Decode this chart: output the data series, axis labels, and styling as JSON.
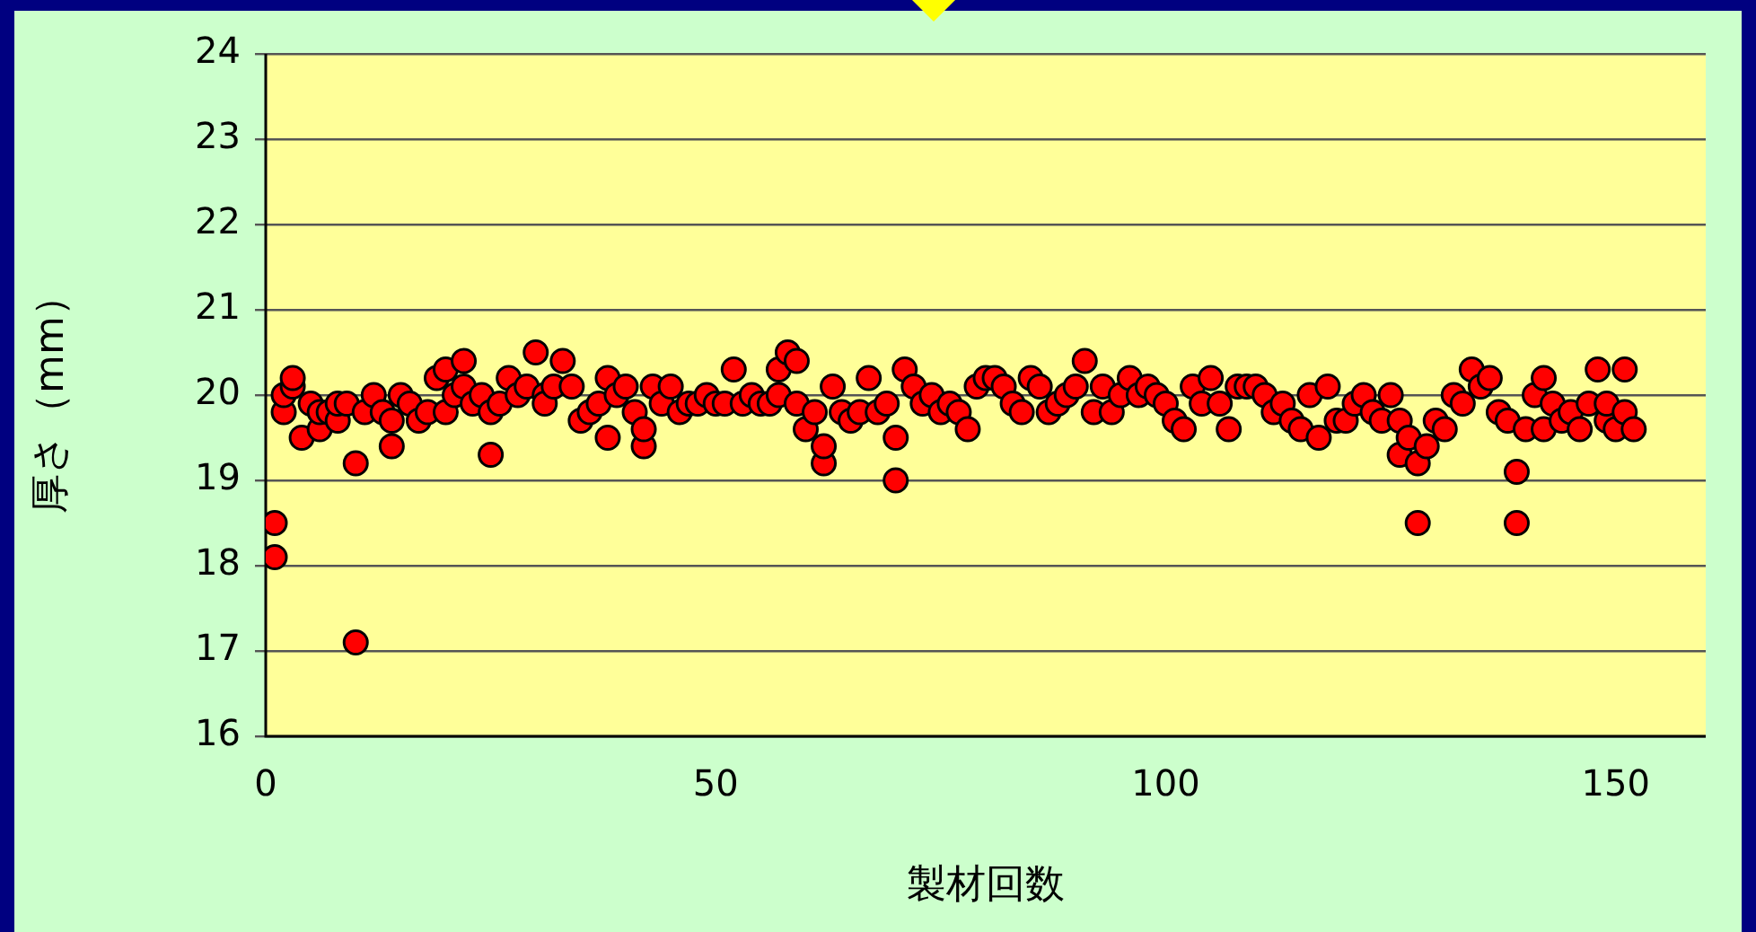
{
  "chart_data": {
    "type": "scatter",
    "xlabel": "製材回数",
    "ylabel": "厚さ（mm）",
    "xlim": [
      0,
      160
    ],
    "xticks": [
      0,
      50,
      100,
      150
    ],
    "ylim": [
      16,
      24
    ],
    "yticks": [
      16,
      17,
      18,
      19,
      20,
      21,
      22,
      23,
      24
    ],
    "grid": "y",
    "marker": "circle",
    "legend": false,
    "series": [
      {
        "color": "#ff0000",
        "x": [
          1,
          1,
          2,
          2,
          3,
          3,
          4,
          5,
          6,
          6,
          7,
          8,
          8,
          9,
          10,
          10,
          11,
          12,
          13,
          14,
          14,
          15,
          16,
          17,
          18,
          19,
          20,
          20,
          21,
          22,
          22,
          23,
          24,
          25,
          25,
          26,
          27,
          28,
          29,
          30,
          31,
          31,
          32,
          33,
          34,
          35,
          36,
          37,
          38,
          38,
          39,
          40,
          41,
          42,
          42,
          43,
          44,
          45,
          46,
          47,
          48,
          49,
          50,
          51,
          52,
          53,
          54,
          55,
          56,
          57,
          57,
          58,
          59,
          59,
          60,
          61,
          62,
          62,
          63,
          64,
          65,
          66,
          67,
          68,
          69,
          70,
          70,
          71,
          72,
          73,
          74,
          75,
          76,
          77,
          78,
          79,
          80,
          81,
          82,
          83,
          84,
          85,
          86,
          87,
          88,
          89,
          90,
          91,
          92,
          93,
          94,
          95,
          96,
          97,
          98,
          99,
          100,
          101,
          102,
          103,
          104,
          105,
          106,
          107,
          108,
          109,
          110,
          111,
          112,
          113,
          114,
          115,
          116,
          117,
          118,
          119,
          120,
          121,
          122,
          123,
          124,
          125,
          126,
          126,
          127,
          128,
          128,
          129,
          130,
          131,
          132,
          133,
          134,
          135,
          136,
          137,
          138,
          139,
          139,
          140,
          141,
          142,
          142,
          143,
          144,
          145,
          146,
          147,
          148,
          149,
          149,
          150,
          151,
          151,
          152
        ],
        "values": [
          18.1,
          18.5,
          19.8,
          20.0,
          20.1,
          20.2,
          19.5,
          19.9,
          19.6,
          19.8,
          19.8,
          19.7,
          19.9,
          19.9,
          19.2,
          17.1,
          19.8,
          20.0,
          19.8,
          19.4,
          19.7,
          20.0,
          19.9,
          19.7,
          19.8,
          20.2,
          20.3,
          19.8,
          20.0,
          20.4,
          20.1,
          19.9,
          20.0,
          19.3,
          19.8,
          19.9,
          20.2,
          20.0,
          20.1,
          20.5,
          20.0,
          19.9,
          20.1,
          20.4,
          20.1,
          19.7,
          19.8,
          19.9,
          20.2,
          19.5,
          20.0,
          20.1,
          19.8,
          19.4,
          19.6,
          20.1,
          19.9,
          20.1,
          19.8,
          19.9,
          19.9,
          20.0,
          19.9,
          19.9,
          20.3,
          19.9,
          20.0,
          19.9,
          19.9,
          20.3,
          20.0,
          20.5,
          20.4,
          19.9,
          19.6,
          19.8,
          19.2,
          19.4,
          20.1,
          19.8,
          19.7,
          19.8,
          20.2,
          19.8,
          19.9,
          19.0,
          19.5,
          20.3,
          20.1,
          19.9,
          20.0,
          19.8,
          19.9,
          19.8,
          19.6,
          20.1,
          20.2,
          20.2,
          20.1,
          19.9,
          19.8,
          20.2,
          20.1,
          19.8,
          19.9,
          20.0,
          20.1,
          20.4,
          19.8,
          20.1,
          19.8,
          20.0,
          20.2,
          20.0,
          20.1,
          20.0,
          19.9,
          19.7,
          19.6,
          20.1,
          19.9,
          20.2,
          19.9,
          19.6,
          20.1,
          20.1,
          20.1,
          20.0,
          19.8,
          19.9,
          19.7,
          19.6,
          20.0,
          19.5,
          20.1,
          19.7,
          19.7,
          19.9,
          20.0,
          19.8,
          19.7,
          20.0,
          19.3,
          19.7,
          19.5,
          19.2,
          18.5,
          19.4,
          19.7,
          19.6,
          20.0,
          19.9,
          20.3,
          20.1,
          20.2,
          19.8,
          19.7,
          19.1,
          18.5,
          19.6,
          20.0,
          20.2,
          19.6,
          19.9,
          19.7,
          19.8,
          19.6,
          19.9,
          20.3,
          19.7,
          19.9,
          19.6,
          20.3,
          19.8,
          19.6
        ]
      }
    ]
  }
}
